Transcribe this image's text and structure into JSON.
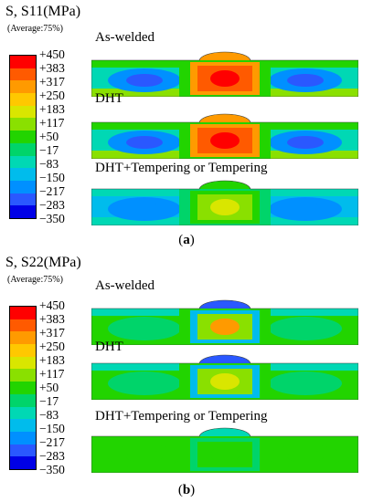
{
  "figure": {
    "panels": [
      {
        "id": "a",
        "caption": "a",
        "stress_label": "S, S11(MPa)",
        "average_label": "(Average:75%)",
        "legend": {
          "ticks": [
            "+450",
            "+383",
            "+317",
            "+250",
            "+183",
            "+117",
            "+50",
            "−17",
            "−83",
            "−150",
            "−217",
            "−283",
            "−350"
          ],
          "colors": [
            "#ff0000",
            "#ff5a00",
            "#ff9a00",
            "#ffc800",
            "#d9e600",
            "#8ae000",
            "#22d400",
            "#00d46a",
            "#00d8b4",
            "#00bcec",
            "#0090ff",
            "#2a58ff",
            "#0000e6"
          ]
        },
        "cases": [
          {
            "label": "As-welded",
            "field": {
              "background": "#00d8b4",
              "left_blob": "#0090ff",
              "left_core": "#2a58ff",
              "right_blob": "#0090ff",
              "right_core": "#2a58ff",
              "band_top": "#22d400",
              "band_bottom": "#8ae000",
              "side_mid": "#22d400",
              "center": "#ff5a00",
              "center_ring": "#ff9a00",
              "center_core": "#ff0000",
              "cap": "#ff9a00"
            }
          },
          {
            "label": "DHT",
            "field": {
              "background": "#00d8b4",
              "left_blob": "#0090ff",
              "left_core": "#2a58ff",
              "right_blob": "#0090ff",
              "right_core": "#2a58ff",
              "band_top": "#22d400",
              "band_bottom": "#8ae000",
              "side_mid": "#22d400",
              "center": "#ff5a00",
              "center_ring": "#ff9a00",
              "center_core": "#ff0000",
              "cap": "#ff9a00"
            }
          },
          {
            "label": "DHT+Tempering or Tempering",
            "field": {
              "background": "#00bcec",
              "left_blob": "#0090ff",
              "left_core": "#0090ff",
              "right_blob": "#0090ff",
              "right_core": "#0090ff",
              "band_top": "#00d8b4",
              "band_bottom": "#00d8b4",
              "side_mid": "#00d46a",
              "center": "#8ae000",
              "center_ring": "#22d400",
              "center_core": "#d9e600",
              "cap": "#22d400"
            }
          }
        ]
      },
      {
        "id": "b",
        "caption": "b",
        "stress_label": "S, S22(MPa)",
        "average_label": "(Average:75%)",
        "legend": {
          "ticks": [
            "+450",
            "+383",
            "+317",
            "+250",
            "+183",
            "+117",
            "+50",
            "−17",
            "−83",
            "−150",
            "−217",
            "−283",
            "−350"
          ],
          "colors": [
            "#ff0000",
            "#ff5a00",
            "#ff9a00",
            "#ffc800",
            "#d9e600",
            "#8ae000",
            "#22d400",
            "#00d46a",
            "#00d8b4",
            "#00bcec",
            "#0090ff",
            "#2a58ff",
            "#0000e6"
          ]
        },
        "cases": [
          {
            "label": "As-welded",
            "field": {
              "background": "#22d400",
              "left_blob": "#00d46a",
              "left_core": "#00d46a",
              "right_blob": "#00d46a",
              "right_core": "#00d46a",
              "band_top": "#00d8b4",
              "band_bottom": "#22d400",
              "side_mid": "#22d400",
              "center": "#8ae000",
              "center_ring": "#00bcec",
              "center_core": "#ff9a00",
              "cap": "#2a58ff"
            }
          },
          {
            "label": "DHT",
            "field": {
              "background": "#22d400",
              "left_blob": "#00d46a",
              "left_core": "#00d46a",
              "right_blob": "#00d46a",
              "right_core": "#00d46a",
              "band_top": "#00d8b4",
              "band_bottom": "#22d400",
              "side_mid": "#22d400",
              "center": "#8ae000",
              "center_ring": "#00bcec",
              "center_core": "#d9e600",
              "cap": "#2a58ff"
            }
          },
          {
            "label": "DHT+Tempering or Tempering",
            "field": {
              "background": "#22d400",
              "left_blob": "#22d400",
              "left_core": "#22d400",
              "right_blob": "#22d400",
              "right_core": "#22d400",
              "band_top": "#22d400",
              "band_bottom": "#22d400",
              "side_mid": "#22d400",
              "center": "#22d400",
              "center_ring": "#00d46a",
              "center_core": "#22d400",
              "cap": "#00d8b4"
            }
          }
        ]
      }
    ]
  }
}
